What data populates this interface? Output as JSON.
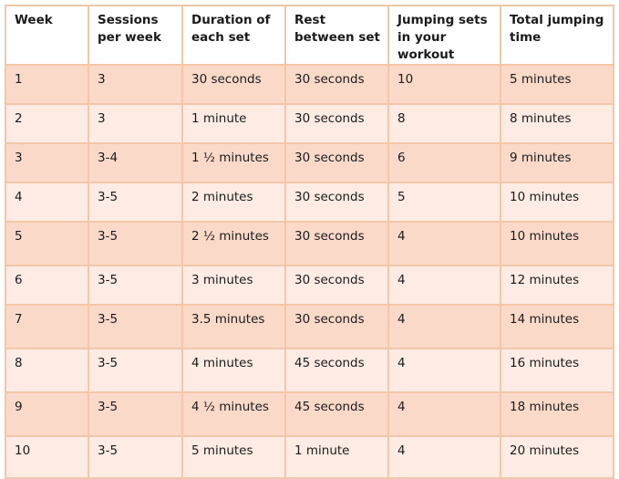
{
  "table": {
    "headers": [
      "Week",
      "Sessions per week",
      "Duration of each set",
      "Rest between set",
      "Jumping sets in your workout",
      "Total jumping time"
    ],
    "rows": [
      [
        "1",
        "3",
        "30 seconds",
        "30 seconds",
        "10",
        "5 minutes"
      ],
      [
        "2",
        "3",
        "1 minute",
        "30 seconds",
        "8",
        "8 minutes"
      ],
      [
        "3",
        "3-4",
        "1 ½ minutes",
        "30 seconds",
        "6",
        "9 minutes"
      ],
      [
        "4",
        "3-5",
        "2 minutes",
        "30 seconds",
        "5",
        "10 minutes"
      ],
      [
        "5",
        "3-5",
        "2 ½ minutes",
        "30 seconds",
        "4",
        "10 minutes"
      ],
      [
        "6",
        "3-5",
        "3 minutes",
        "30 seconds",
        "4",
        "12 minutes"
      ],
      [
        "7",
        "3-5",
        "3.5 minutes",
        "30 seconds",
        "4",
        "14 minutes"
      ],
      [
        "8",
        "3-5",
        "4 minutes",
        "45 seconds",
        "4",
        "16 minutes"
      ],
      [
        "9",
        "3-5",
        "4 ½ minutes",
        "45 seconds",
        "4",
        "18 minutes"
      ],
      [
        "10",
        "3-5",
        "5 minutes",
        "1 minute",
        "4",
        "20 minutes"
      ]
    ]
  },
  "colors": {
    "border": "#f2c7a8",
    "row_dark": "#fbd9c9",
    "row_light": "#fdebe4",
    "header_bg": "#ffffff",
    "text": "#1b1b1b"
  }
}
